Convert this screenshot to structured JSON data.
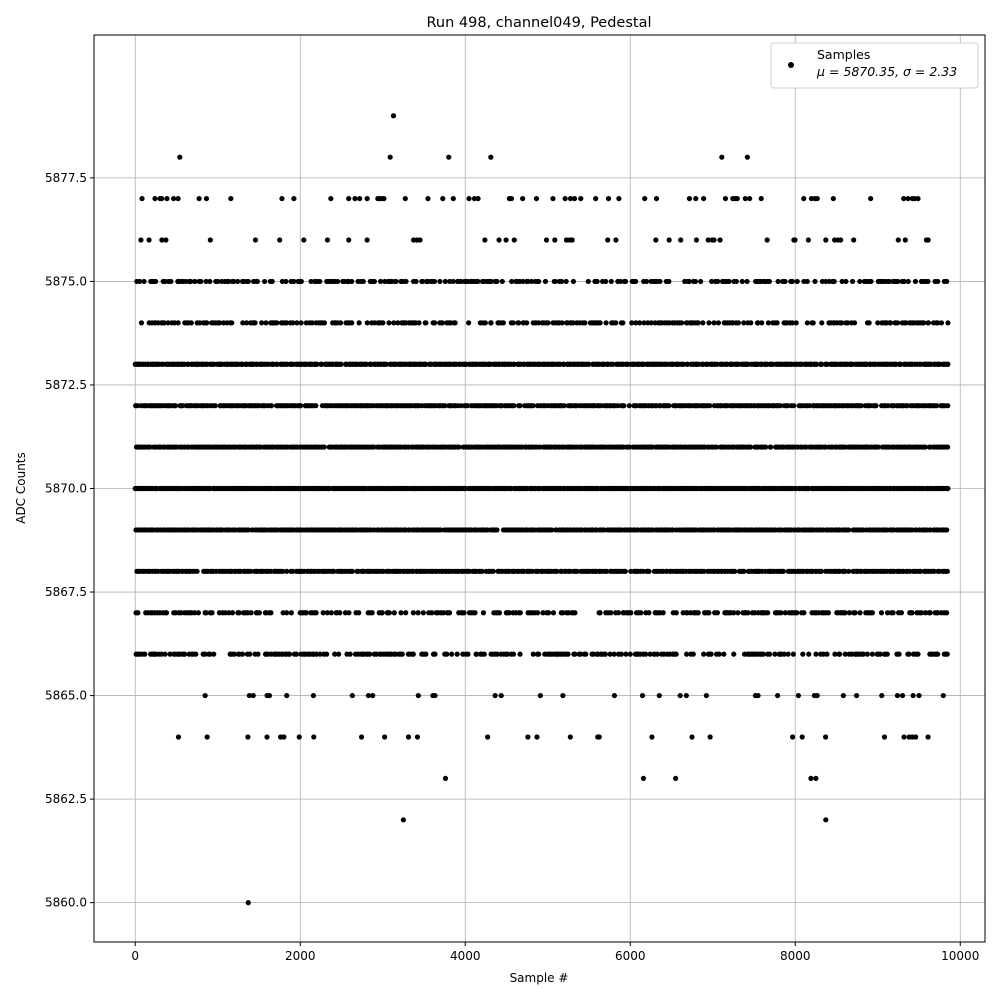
{
  "chart_data": {
    "type": "scatter",
    "title": "Run 498, channel049, Pedestal",
    "xlabel": "Sample #",
    "ylabel": "ADC Counts",
    "xlim": [
      -500,
      10300
    ],
    "ylim": [
      5859.05,
      5880.95
    ],
    "xticks": [
      0,
      2000,
      4000,
      6000,
      8000,
      10000
    ],
    "xtick_labels": [
      "0",
      "2000",
      "4000",
      "6000",
      "8000",
      "10000"
    ],
    "yticks": [
      5860.0,
      5862.5,
      5865.0,
      5867.5,
      5870.0,
      5872.5,
      5875.0,
      5877.5
    ],
    "ytick_labels": [
      "5860.0",
      "5862.5",
      "5865.0",
      "5867.5",
      "5870.0",
      "5872.5",
      "5875.0",
      "5877.5"
    ],
    "grid": true,
    "legend_position": "top-right",
    "series": [
      {
        "name": "Samples",
        "label_line2": "μ = 5870.35, σ = 2.33",
        "color": "#000000",
        "x": [
          0,
          50,
          100,
          150,
          200,
          250,
          300,
          350,
          400,
          450,
          500,
          550,
          600,
          650,
          700,
          750,
          800,
          850,
          900,
          950,
          1000,
          1050,
          1100,
          1150,
          1200,
          1250,
          1300,
          1350,
          1400,
          1450,
          1500,
          1550,
          1600,
          1650,
          1700,
          1750,
          1800,
          1850,
          1900,
          1950,
          2000,
          2050,
          2100,
          2150,
          2200,
          2250,
          2300,
          2350,
          2400,
          2450,
          2500,
          2550,
          2600,
          2650,
          2700,
          2750,
          2800,
          2850,
          2900,
          2950,
          3000,
          3050,
          3100,
          3150,
          3200,
          3250,
          3300,
          3350,
          3400,
          3450,
          3500,
          3550,
          3600,
          3650,
          3700,
          3750,
          3800,
          3850,
          3900,
          3950,
          4000,
          4050,
          4100,
          4150,
          4200,
          4250,
          4300,
          4350,
          4400,
          4450,
          4500,
          4550,
          4600,
          4650,
          4700,
          4750,
          4800,
          4850,
          4900,
          4950,
          5000,
          5050,
          5100,
          5150,
          5200,
          5250,
          5300,
          5350,
          5400,
          5450,
          5500,
          5550,
          5600,
          5650,
          5700,
          5750,
          5800,
          5850,
          5900,
          5950,
          6000,
          6050,
          6100,
          6150,
          6200,
          6250,
          6300,
          6350,
          6400,
          6450,
          6500,
          6550,
          6600,
          6650,
          6700,
          6750,
          6800,
          6850,
          6900,
          6950,
          7000,
          7050,
          7100,
          7150,
          7200,
          7250,
          7300,
          7350,
          7400,
          7450,
          7500,
          7550,
          7600,
          7650,
          7700,
          7750,
          7800,
          7850,
          7900,
          7950,
          8000,
          8050,
          8100,
          8150,
          8200,
          8250,
          8300,
          8350,
          8400,
          8450,
          8500,
          8550,
          8600,
          8650,
          8700,
          8750,
          8800,
          8850,
          8900,
          8950,
          9000,
          9050,
          9100,
          9150,
          9200,
          9250,
          9300,
          9350,
          9400,
          9450,
          9500,
          9550,
          9600,
          9650,
          9700,
          9750,
          9800,
          9850,
          0,
          30,
          60,
          90,
          150,
          210,
          270,
          330,
          390,
          450,
          510,
          570,
          630,
          690,
          750,
          810,
          870,
          930,
          990,
          1050,
          1110,
          1170,
          1230,
          1290,
          1350,
          1410,
          1470,
          1530,
          1590,
          1650,
          1710,
          1770,
          1830,
          1890,
          1950,
          2010,
          2070,
          2130,
          2190,
          2250,
          2310,
          2370,
          2430,
          2490,
          2550,
          2610,
          2670,
          2730,
          2790,
          2850,
          2910,
          2970,
          3030,
          3090,
          3150,
          3210,
          3270,
          3330,
          3390,
          3450,
          3510,
          3570,
          3630,
          3690,
          3750,
          3810,
          3870,
          3930,
          3990,
          4050,
          4110,
          4170,
          4230,
          4290,
          4350,
          4410,
          4470,
          4530,
          4590,
          4650,
          4710,
          4770,
          4830,
          4890,
          4950,
          5010,
          5070,
          5130,
          5190,
          5250,
          5310,
          5370,
          5430,
          5490,
          5550,
          5610,
          5670,
          5730,
          5790,
          5850,
          5910,
          5970,
          6030,
          6090,
          6150,
          6210,
          6270,
          6330,
          6390,
          6450,
          6510,
          6570,
          6630,
          6690,
          6750,
          6810,
          6870,
          6930,
          6990,
          7050,
          7110,
          7170,
          7230,
          7290,
          7350,
          7410,
          7470,
          7530,
          7590,
          7650,
          7710,
          7770,
          7830,
          7890,
          7950,
          8010,
          8070,
          8130,
          8190,
          8250,
          8310,
          8370,
          8430,
          8490,
          8550,
          8610,
          8670,
          8730,
          8790,
          8850,
          8910,
          8970,
          9030,
          9090,
          9150,
          9210,
          9270,
          9330,
          9390,
          9450,
          9510,
          9570,
          9630,
          9690,
          9750,
          9810,
          9850,
          540,
          3130,
          3090,
          3800,
          4310,
          7110,
          7420,
          1370,
          3250,
          8370,
          3760,
          6160,
          6550,
          8190,
          8250
        ],
        "y": [
          5870,
          5870,
          5870,
          5870,
          5870,
          5870,
          5870,
          5870,
          5870,
          5870,
          5870,
          5870,
          5870,
          5870,
          5870,
          5870,
          5870,
          5870,
          5870,
          5870,
          5870,
          5870,
          5870,
          5870,
          5870,
          5870,
          5870,
          5870,
          5870,
          5870,
          5870,
          5870,
          5870,
          5870,
          5870,
          5870,
          5870,
          5870,
          5870,
          5870,
          5870,
          5870,
          5870,
          5870,
          5870,
          5870,
          5870,
          5870,
          5870,
          5870,
          5870,
          5870,
          5870,
          5870,
          5870,
          5870,
          5870,
          5870,
          5870,
          5870,
          5870,
          5870,
          5870,
          5870,
          5870,
          5870,
          5870,
          5870,
          5870,
          5870,
          5870,
          5870,
          5870,
          5870,
          5870,
          5870,
          5870,
          5870,
          5870,
          5870,
          5870,
          5870,
          5870,
          5870,
          5870,
          5870,
          5870,
          5870,
          5870,
          5870,
          5870,
          5870,
          5870,
          5870,
          5870,
          5870,
          5870,
          5870,
          5870,
          5870,
          5870,
          5870,
          5870,
          5870,
          5870,
          5870,
          5870,
          5870,
          5870,
          5870,
          5870,
          5870,
          5870,
          5870,
          5870,
          5870,
          5870,
          5870,
          5870,
          5870,
          5870,
          5870,
          5870,
          5870,
          5870,
          5870,
          5870,
          5870,
          5870,
          5870,
          5870,
          5870,
          5870,
          5870,
          5870,
          5870,
          5870,
          5870,
          5870,
          5870,
          5870,
          5870,
          5870,
          5870,
          5870,
          5870,
          5870,
          5870,
          5870,
          5870,
          5870,
          5870,
          5870,
          5870,
          5870,
          5870,
          5870,
          5870,
          5870,
          5870,
          5870,
          5870,
          5870,
          5870,
          5870,
          5870,
          5870,
          5870,
          5870,
          5870,
          5870,
          5870,
          5870,
          5870,
          5870,
          5870,
          5870,
          5870,
          5870,
          5870,
          5870,
          5870,
          5870,
          5870,
          5870,
          5870,
          5870,
          5870,
          5870,
          5870,
          5870,
          5870,
          5870,
          5870,
          5870,
          5870,
          5870,
          5870,
          5873,
          5873,
          5873,
          5873,
          5873,
          5873,
          5873,
          5873,
          5873,
          5873,
          5873,
          5873,
          5873,
          5873,
          5873,
          5873,
          5873,
          5873,
          5873,
          5873,
          5873,
          5873,
          5873,
          5873,
          5873,
          5873,
          5873,
          5873,
          5873,
          5873,
          5873,
          5873,
          5873,
          5873,
          5873,
          5873,
          5873,
          5873,
          5873,
          5873,
          5873,
          5873,
          5873,
          5873,
          5873,
          5873,
          5873,
          5873,
          5873,
          5873,
          5873,
          5873,
          5873,
          5873,
          5873,
          5873,
          5873,
          5873,
          5873,
          5873,
          5873,
          5873,
          5873,
          5873,
          5873,
          5873,
          5873,
          5873,
          5873,
          5873,
          5873,
          5873,
          5873,
          5873,
          5873,
          5873,
          5873,
          5873,
          5873,
          5873,
          5873,
          5873,
          5873,
          5873,
          5873,
          5873,
          5873,
          5873,
          5873,
          5873,
          5873,
          5873,
          5873,
          5873,
          5873,
          5873,
          5873,
          5873,
          5873,
          5873,
          5873,
          5873,
          5873,
          5873,
          5873,
          5873,
          5873,
          5873,
          5873,
          5873,
          5873,
          5873,
          5873,
          5873,
          5873,
          5873,
          5873,
          5873,
          5873,
          5873,
          5873,
          5873,
          5873,
          5873,
          5873,
          5873,
          5873,
          5873,
          5873,
          5873,
          5873,
          5873,
          5873,
          5873,
          5873,
          5873,
          5873,
          5873,
          5873,
          5873,
          5873,
          5873,
          5873,
          5873,
          5873,
          5873,
          5873,
          5873,
          5873,
          5873,
          5873,
          5873,
          5873,
          5873,
          5873,
          5873,
          5873,
          5873,
          5873,
          5873,
          5873,
          5873,
          5873,
          5873,
          5873,
          5873,
          5873,
          5878,
          5879,
          5878,
          5878,
          5878,
          5878,
          5878,
          5860,
          5862,
          5862,
          5863,
          5863,
          5863,
          5863,
          5863
        ]
      }
    ]
  }
}
